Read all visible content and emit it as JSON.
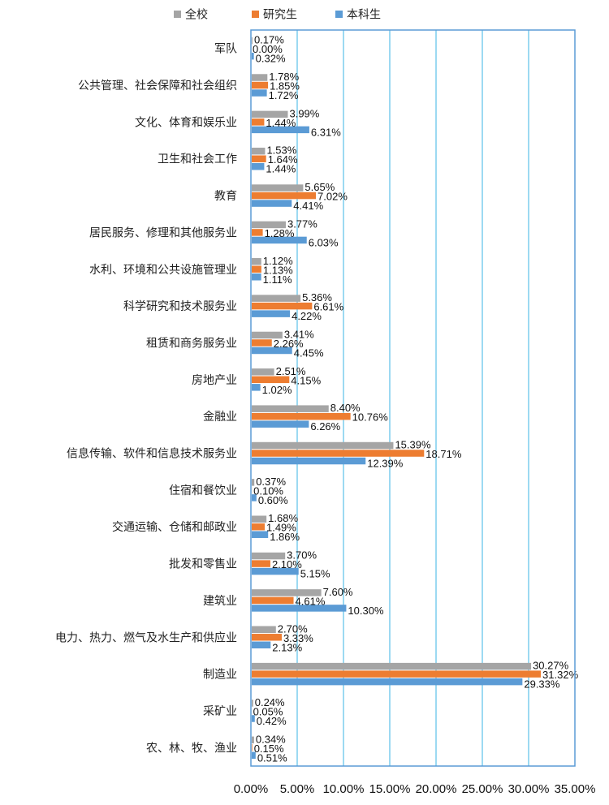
{
  "chart_data": {
    "type": "bar",
    "orientation": "horizontal",
    "categories": [
      "军队",
      "公共管理、社会保障和社会组织",
      "文化、体育和娱乐业",
      "卫生和社会工作",
      "教育",
      "居民服务、修理和其他服务业",
      "水利、环境和公共设施管理业",
      "科学研究和技术服务业",
      "租赁和商务服务业",
      "房地产业",
      "金融业",
      "信息传输、软件和信息技术服务业",
      "住宿和餐饮业",
      "交通运输、仓储和邮政业",
      "批发和零售业",
      "建筑业",
      "电力、热力、燃气及水生产和供应业",
      "制造业",
      "采矿业",
      "农、林、牧、渔业"
    ],
    "series": [
      {
        "name": "全校",
        "color": "#a5a5a5",
        "values": [
          0.17,
          1.78,
          3.99,
          1.53,
          5.65,
          3.77,
          1.12,
          5.36,
          3.41,
          2.51,
          8.4,
          15.39,
          0.37,
          1.68,
          3.7,
          7.6,
          2.7,
          30.27,
          0.24,
          0.34
        ],
        "labels": [
          "0.17%",
          "1.78%",
          "3.99%",
          "1.53%",
          "5.65%",
          "3.77%",
          "1.12%",
          "5.36%",
          "3.41%",
          "2.51%",
          "8.40%",
          "15.39%",
          "0.37%",
          "1.68%",
          "3.70%",
          "7.60%",
          "2.70%",
          "30.27%",
          "0.24%",
          "0.34%"
        ]
      },
      {
        "name": "研究生",
        "color": "#ed7d31",
        "values": [
          0.0,
          1.85,
          1.44,
          1.64,
          7.02,
          1.28,
          1.13,
          6.61,
          2.26,
          4.15,
          10.76,
          18.71,
          0.1,
          1.49,
          2.1,
          4.61,
          3.33,
          31.32,
          0.05,
          0.15
        ],
        "labels": [
          "0.00%",
          "1.85%",
          "1.44%",
          "1.64%",
          "7.02%",
          "1.28%",
          "1.13%",
          "6.61%",
          "2.26%",
          "4.15%",
          "10.76%",
          "18.71%",
          "0.10%",
          "1.49%",
          "2.10%",
          "4.61%",
          "3.33%",
          "31.32%",
          "0.05%",
          "0.15%"
        ]
      },
      {
        "name": "本科生",
        "color": "#5b9bd5",
        "values": [
          0.32,
          1.72,
          6.31,
          1.44,
          4.41,
          6.03,
          1.11,
          4.22,
          4.45,
          1.02,
          6.26,
          12.39,
          0.6,
          1.86,
          5.15,
          10.3,
          2.13,
          29.33,
          0.42,
          0.51
        ],
        "labels": [
          "0.32%",
          "1.72%",
          "6.31%",
          "1.44%",
          "4.41%",
          "6.03%",
          "1.11%",
          "4.22%",
          "4.45%",
          "1.02%",
          "6.26%",
          "12.39%",
          "0.60%",
          "1.86%",
          "5.15%",
          "10.30%",
          "2.13%",
          "29.33%",
          "0.42%",
          "0.51%"
        ]
      }
    ],
    "xlim": [
      0,
      35
    ],
    "x_ticks": [
      0,
      5,
      10,
      15,
      20,
      25,
      30,
      35
    ],
    "x_tick_labels": [
      "0.00%",
      "5.00%",
      "10.00%",
      "15.00%",
      "20.00%",
      "25.00%",
      "30.00%",
      "35.00%"
    ],
    "grid": "vertical",
    "legend_position": "top",
    "title": "",
    "xlabel": "",
    "ylabel": "",
    "frame_color": "#5b9bd5",
    "grid_color": "#5bc0e8"
  }
}
